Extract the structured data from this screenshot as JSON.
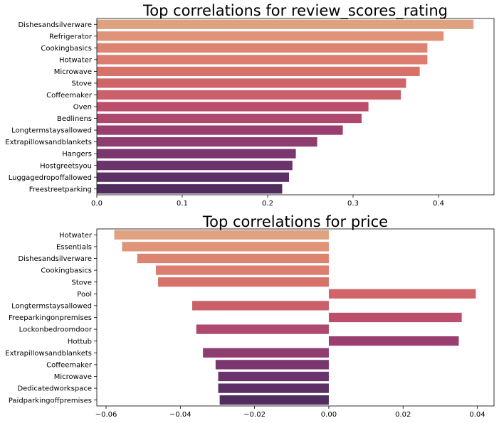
{
  "chart_data": [
    {
      "type": "bar",
      "orientation": "horizontal",
      "title": "Top correlations for review_scores_rating",
      "xlabel": "",
      "ylabel": "",
      "categories": [
        "Dishesandsilverware",
        "Refrigerator",
        "Cookingbasics",
        "Hotwater",
        "Microwave",
        "Stove",
        "Coffeemaker",
        "Oven",
        "Bedlinens",
        "Longtermstaysallowed",
        "Extrapillowsandblankets",
        "Hangers",
        "Hostgreetsyou",
        "Luggagedropoffallowed",
        "Freestreetparking"
      ],
      "values": [
        0.441,
        0.406,
        0.387,
        0.387,
        0.378,
        0.362,
        0.356,
        0.318,
        0.31,
        0.288,
        0.258,
        0.233,
        0.229,
        0.225,
        0.217
      ],
      "xlim": [
        0,
        0.465
      ],
      "xticks": [
        0,
        0.1,
        0.2,
        0.3,
        0.4
      ],
      "xtick_labels": [
        "0.0",
        "0.1",
        "0.2",
        "0.3",
        "0.4"
      ],
      "grid": false,
      "colors": [
        "#dea281",
        "#e09377",
        "#dd8471",
        "#dc7d6f",
        "#d77269",
        "#cf6569",
        "#c9606a",
        "#bb4e6a",
        "#b0476e",
        "#9a3e6f",
        "#8f3c71",
        "#7a366f",
        "#6b336c",
        "#5c2f67",
        "#512d5f"
      ]
    },
    {
      "type": "bar",
      "orientation": "horizontal",
      "title": "Top correlations for price",
      "xlabel": "",
      "ylabel": "",
      "categories": [
        "Hotwater",
        "Essentials",
        "Dishesandsilverware",
        "Cookingbasics",
        "Stove",
        "Pool",
        "Longtermstaysallowed",
        "Freeparkingonpremises",
        "Lockonbedroomdoor",
        "Hottub",
        "Extrapillowsandblankets",
        "Coffeemaker",
        "Microwave",
        "Dedicatedworkspace",
        "Paidparkingoffpremises"
      ],
      "values": [
        -0.0578,
        -0.0557,
        -0.0516,
        -0.0466,
        -0.046,
        0.0396,
        -0.0368,
        0.0358,
        -0.0357,
        0.035,
        -0.0339,
        -0.0305,
        -0.0298,
        -0.0298,
        -0.0294
      ],
      "xlim": [
        -0.0625,
        0.0445
      ],
      "xticks": [
        -0.06,
        -0.04,
        -0.02,
        0.0,
        0.02,
        0.04
      ],
      "xtick_labels": [
        "−0.06",
        "−0.04",
        "−0.02",
        "0.00",
        "0.02",
        "0.04"
      ],
      "grid": false,
      "colors": [
        "#dea281",
        "#e09377",
        "#dd8471",
        "#dc7d6f",
        "#d77269",
        "#cf6569",
        "#c9606a",
        "#bb4e6a",
        "#b0476e",
        "#9a3e6f",
        "#8f3c71",
        "#7a366f",
        "#6b336c",
        "#5c2f67",
        "#512d5f"
      ]
    }
  ]
}
